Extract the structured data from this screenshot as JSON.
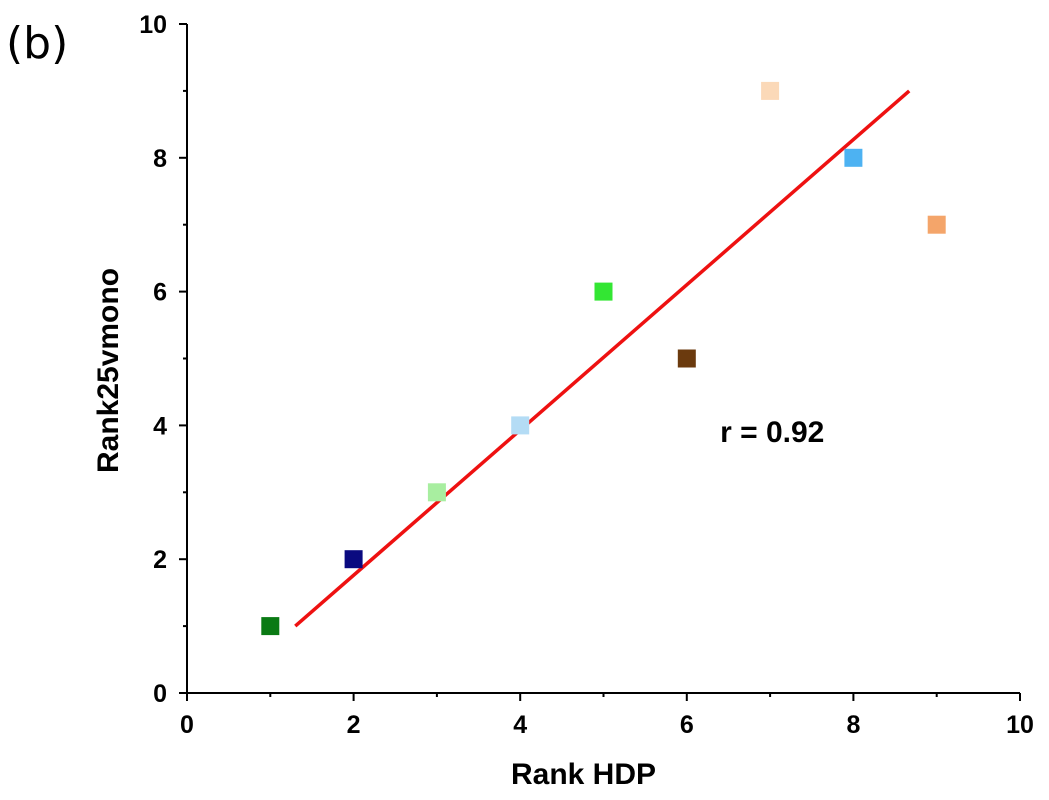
{
  "panel_label": "(b)",
  "chart_data": {
    "type": "scatter",
    "xlabel": "Rank HDP",
    "ylabel": "Rank25vmono",
    "xlim": [
      0,
      10
    ],
    "ylim": [
      0,
      10
    ],
    "x_ticks": [
      "0",
      "2",
      "4",
      "6",
      "8",
      "10"
    ],
    "y_ticks": [
      "0",
      "2",
      "4",
      "6",
      "8",
      "10"
    ],
    "grid": false,
    "legend": "none",
    "points": [
      {
        "x": 1,
        "y": 1,
        "color": "#0a7a14"
      },
      {
        "x": 2,
        "y": 2,
        "color": "#0a0a80"
      },
      {
        "x": 3,
        "y": 3,
        "color": "#a8eea0"
      },
      {
        "x": 4,
        "y": 4,
        "color": "#b4dcf5"
      },
      {
        "x": 5,
        "y": 6,
        "color": "#33e633"
      },
      {
        "x": 6,
        "y": 5,
        "color": "#6b3a0e"
      },
      {
        "x": 7,
        "y": 9,
        "color": "#fbd9b8"
      },
      {
        "x": 8,
        "y": 8,
        "color": "#4db2f2"
      },
      {
        "x": 9,
        "y": 7,
        "color": "#f4a56a"
      }
    ],
    "fit_line": {
      "x": [
        1.3,
        8.67
      ],
      "y": [
        1.0,
        9.0
      ],
      "color": "#ee1111"
    },
    "annotation": "r = 0.92"
  }
}
